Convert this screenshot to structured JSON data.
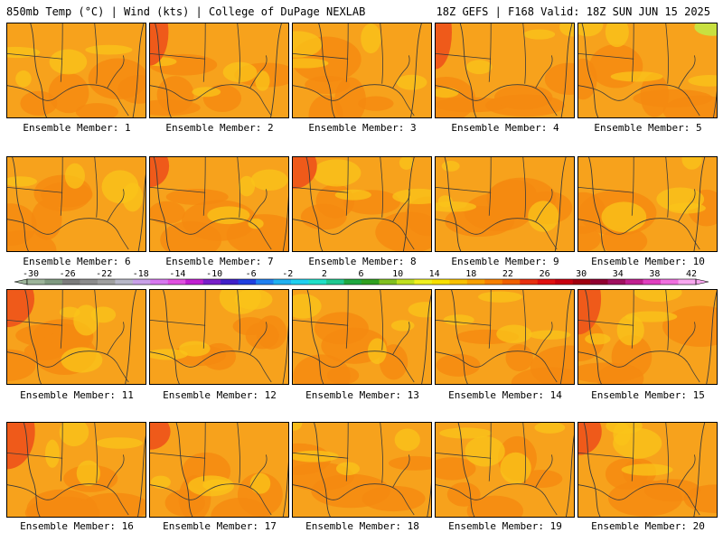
{
  "header": {
    "left": "850mb Temp (°C) | Wind (kts) | College of DuPage NEXLAB",
    "right": "18Z GEFS | F168 Valid: 18Z SUN JUN 15 2025"
  },
  "members": [
    {
      "label": "Ensemble Member: 1"
    },
    {
      "label": "Ensemble Member: 2"
    },
    {
      "label": "Ensemble Member: 3"
    },
    {
      "label": "Ensemble Member: 4"
    },
    {
      "label": "Ensemble Member: 5"
    },
    {
      "label": "Ensemble Member: 6"
    },
    {
      "label": "Ensemble Member: 7"
    },
    {
      "label": "Ensemble Member: 8"
    },
    {
      "label": "Ensemble Member: 9"
    },
    {
      "label": "Ensemble Member: 10"
    },
    {
      "label": "Ensemble Member: 11"
    },
    {
      "label": "Ensemble Member: 12"
    },
    {
      "label": "Ensemble Member: 13"
    },
    {
      "label": "Ensemble Member: 14"
    },
    {
      "label": "Ensemble Member: 15"
    },
    {
      "label": "Ensemble Member: 16"
    },
    {
      "label": "Ensemble Member: 17"
    },
    {
      "label": "Ensemble Member: 18"
    },
    {
      "label": "Ensemble Member: 19"
    },
    {
      "label": "Ensemble Member: 20"
    }
  ],
  "colorbar": {
    "tick_labels": [
      "-30",
      "-26",
      "-22",
      "-18",
      "-14",
      "-10",
      "-6",
      "-2",
      "2",
      "6",
      "10",
      "14",
      "18",
      "22",
      "26",
      "30",
      "34",
      "38",
      "42"
    ],
    "colors": [
      "#9db59a",
      "#7f9a80",
      "#7c7c7c",
      "#8c8c8c",
      "#a0a0a0",
      "#b8b8c8",
      "#c8a0e8",
      "#d878f0",
      "#e050e0",
      "#c020d0",
      "#7820c8",
      "#4020c8",
      "#2040e0",
      "#2080f0",
      "#20b0f0",
      "#20d0f0",
      "#20e0c8",
      "#20c890",
      "#20a840",
      "#30a020",
      "#80c020",
      "#c0e020",
      "#f0f020",
      "#f8e000",
      "#f8c000",
      "#f8a000",
      "#f88000",
      "#f06000",
      "#e83010",
      "#e01010",
      "#c80010",
      "#a00010",
      "#900030",
      "#a01060",
      "#c02090",
      "#e040c0",
      "#f070e0",
      "#f8a8f0"
    ]
  },
  "map_colors": {
    "base": "#f7a21c",
    "warm": "#f58a10",
    "hot": "#ef5a1a",
    "cool": "#f9c41a",
    "line": "#3a3a3a"
  }
}
